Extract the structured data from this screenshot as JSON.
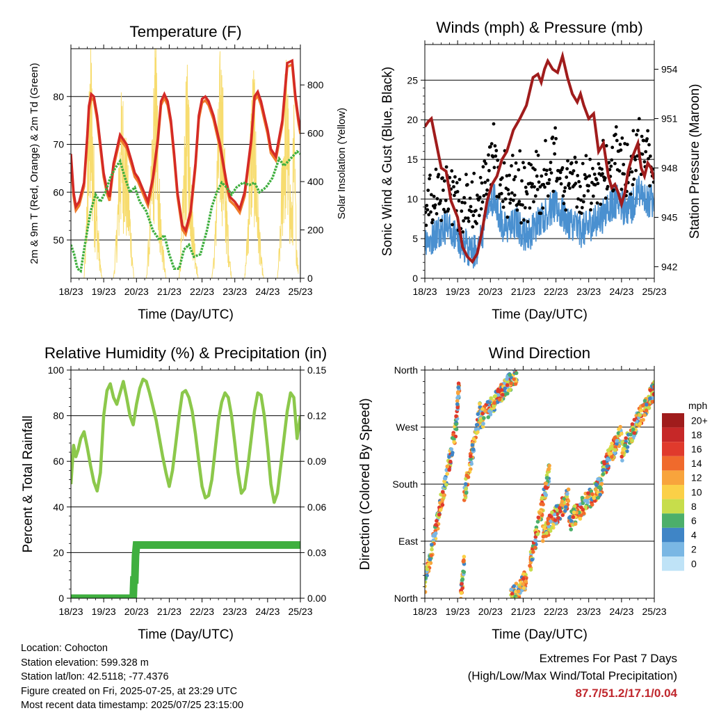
{
  "charts": {
    "temperature": {
      "title": "Temperature (F)",
      "ylabel_left": "2m & 9m T (Red, Orange) & 2m Td (Green)",
      "ylabel_right": "Solar Insolation (Yellow)",
      "xlabel": "Time (Day/UTC)"
    },
    "winds": {
      "title": "Winds (mph) & Pressure (mb)",
      "ylabel_left": "Sonic Wind & Gust (Blue, Black)",
      "ylabel_right": "Station Pressure (Maroon)",
      "xlabel": "Time (Day/UTC)"
    },
    "humidity": {
      "title": "Relative Humidity (%) & Precipitation (in)",
      "ylabel_left": "Percent & Total Rainfall",
      "xlabel": "Time (Day/UTC)"
    },
    "direction": {
      "title": "Wind Direction",
      "ylabel_left": "Direction (Colored By Speed)",
      "xlabel": "Time (Day/UTC)",
      "legend_title": "mph"
    }
  },
  "info": {
    "location": "Location: Cohocton",
    "elevation": "Station elevation: 599.328 m",
    "latlon": "Station lat/lon: 42.5118; -77.4376",
    "created": "Figure created on Fri, 2025-07-25, at 23:29 UTC",
    "recent": "Most recent data timestamp: 2025/07/25 23:15:00"
  },
  "extremes": {
    "heading": "Extremes For Past 7 Days",
    "subheading": "(High/Low/Max Wind/Total Precipitation)",
    "values": "87.7/51.2/17.1/0.04"
  },
  "colors": {
    "temp_2m": "#d42a26",
    "temp_9m": "#f07a2a",
    "dewpoint": "#3faf3f",
    "solar": "#f7dc6f",
    "wind": "#4a90d0",
    "gust": "#000000",
    "pressure": "#a01c1c",
    "rh": "#8cc84b",
    "precip": "#3faf3f"
  },
  "chart_data": [
    {
      "id": "temperature",
      "type": "line",
      "x_ticks": [
        "18/23",
        "19/23",
        "20/23",
        "21/23",
        "22/23",
        "23/23",
        "24/23",
        "25/23"
      ],
      "xlim": [
        0,
        7
      ],
      "ylim": [
        42,
        90
      ],
      "y_ticks": [
        50,
        60,
        70,
        80
      ],
      "y2lim": [
        0,
        950
      ],
      "y2_ticks": [
        0,
        200,
        400,
        600,
        800
      ],
      "series": [
        {
          "key": "temp_2m",
          "x": [
            0,
            0.08,
            0.15,
            0.25,
            0.4,
            0.5,
            0.55,
            0.62,
            0.7,
            0.8,
            0.9,
            1.0,
            1.1,
            1.18,
            1.3,
            1.5,
            1.7,
            1.85,
            1.95,
            2.05,
            2.2,
            2.35,
            2.5,
            2.65,
            2.75,
            2.85,
            2.95,
            3.05,
            3.15,
            3.25,
            3.4,
            3.5,
            3.65,
            3.8,
            3.9,
            4.0,
            4.1,
            4.2,
            4.35,
            4.55,
            4.65,
            4.75,
            4.85,
            5.0,
            5.15,
            5.3,
            5.5,
            5.6,
            5.7,
            5.8,
            5.9,
            6.0,
            6.1,
            6.25,
            6.45,
            6.6,
            6.75,
            6.85,
            6.95,
            7.0
          ],
          "y": [
            68,
            60,
            57,
            58,
            62,
            72,
            78,
            80.5,
            80,
            76,
            70,
            64,
            60.5,
            59,
            66,
            72,
            70,
            66.5,
            64,
            63,
            60.5,
            58,
            63,
            71,
            79,
            80.5,
            79,
            75,
            68,
            60,
            53,
            52,
            56,
            66,
            76,
            79.5,
            80,
            79,
            76,
            70,
            66,
            62,
            59,
            58,
            56.5,
            60,
            71,
            80,
            81,
            79,
            76,
            73,
            69,
            67.5,
            75,
            87,
            87.5,
            80,
            75,
            73
          ]
        },
        {
          "key": "dewpoint",
          "x": [
            0,
            0.1,
            0.2,
            0.3,
            0.45,
            0.6,
            0.75,
            0.9,
            1.05,
            1.2,
            1.35,
            1.5,
            1.65,
            1.8,
            1.95,
            2.1,
            2.3,
            2.5,
            2.7,
            2.85,
            3.0,
            3.15,
            3.3,
            3.45,
            3.6,
            3.75,
            3.95,
            4.15,
            4.3,
            4.45,
            4.6,
            4.75,
            4.9,
            5.05,
            5.25,
            5.45,
            5.6,
            5.75,
            5.95,
            6.15,
            6.35,
            6.5,
            6.7,
            6.9,
            7.0
          ],
          "y": [
            49,
            47,
            44,
            43.5,
            50,
            56,
            59.5,
            58,
            60,
            63,
            65,
            66.5,
            63,
            60,
            61,
            58,
            56,
            52,
            50,
            51,
            47,
            44,
            44,
            48,
            49,
            46.5,
            47,
            52,
            57,
            60,
            62,
            61,
            59.5,
            61,
            62,
            61.5,
            62,
            60,
            61,
            63,
            67,
            65.5,
            67,
            68.5,
            68
          ]
        },
        {
          "key": "solar",
          "x": [
            0.4,
            0.47,
            0.52,
            0.58,
            0.62,
            0.66,
            0.72,
            0.78,
            0.84,
            0.9,
            0.95,
            1.3,
            1.38,
            1.45,
            1.5,
            1.56,
            1.62,
            1.68,
            1.75,
            1.82,
            1.92,
            2.3,
            2.4,
            2.48,
            2.55,
            2.6,
            2.65,
            2.7,
            2.75,
            2.82,
            2.9,
            3.3,
            3.38,
            3.45,
            3.52,
            3.58,
            3.63,
            3.68,
            3.74,
            3.8,
            3.88,
            4.3,
            4.4,
            4.47,
            4.55,
            4.6,
            4.65,
            4.7,
            4.76,
            4.82,
            4.9,
            5.3,
            5.38,
            5.45,
            5.52,
            5.58,
            5.63,
            5.68,
            5.74,
            5.8,
            5.88,
            6.3,
            6.38,
            6.45,
            6.52,
            6.58,
            6.63,
            6.68,
            6.74,
            6.8,
            6.88,
            6.95
          ],
          "y": [
            0,
            250,
            600,
            850,
            920,
            700,
            450,
            350,
            200,
            60,
            0,
            0,
            180,
            420,
            650,
            760,
            700,
            560,
            420,
            260,
            0,
            0,
            250,
            600,
            880,
            940,
            700,
            420,
            260,
            120,
            0,
            0,
            220,
            520,
            800,
            830,
            610,
            400,
            250,
            120,
            0,
            0,
            200,
            600,
            880,
            900,
            700,
            500,
            300,
            150,
            0,
            0,
            200,
            550,
            800,
            850,
            650,
            400,
            250,
            100,
            0,
            0,
            200,
            550,
            800,
            880,
            700,
            450,
            300,
            700,
            200,
            0
          ]
        }
      ]
    },
    {
      "id": "winds",
      "type": "line",
      "x_ticks": [
        "18/23",
        "19/23",
        "20/23",
        "21/23",
        "22/23",
        "23/23",
        "24/23",
        "25/23"
      ],
      "xlim": [
        0,
        7
      ],
      "ylim": [
        0,
        29.5
      ],
      "y_ticks": [
        0,
        5,
        10,
        15,
        20,
        25
      ],
      "y2lim": [
        941.3,
        955.5
      ],
      "y2_ticks": [
        942,
        945,
        948,
        951,
        954
      ],
      "series": [
        {
          "key": "pressure",
          "x": [
            0,
            0.1,
            0.2,
            0.35,
            0.5,
            0.65,
            0.8,
            1.0,
            1.15,
            1.3,
            1.45,
            1.6,
            1.75,
            1.9,
            2.05,
            2.2,
            2.35,
            2.5,
            2.7,
            2.9,
            3.1,
            3.3,
            3.45,
            3.55,
            3.65,
            3.75,
            3.9,
            4.05,
            4.2,
            4.35,
            4.5,
            4.65,
            4.75,
            4.85,
            5.0,
            5.15,
            5.3,
            5.45,
            5.6,
            5.7,
            5.8,
            5.9,
            6.0,
            6.1,
            6.2,
            6.3,
            6.4,
            6.5,
            6.6,
            6.7,
            6.8,
            6.9,
            7.0
          ],
          "y": [
            950.5,
            950.8,
            951.0,
            949.5,
            948.0,
            947.8,
            946.0,
            945.0,
            943.2,
            942.6,
            942.3,
            942.8,
            944.2,
            946.0,
            947.0,
            947.5,
            948.5,
            949.0,
            950.3,
            951.0,
            951.8,
            953.5,
            953.7,
            953.2,
            954.0,
            954.5,
            954.0,
            953.8,
            954.8,
            953.5,
            952.5,
            952.0,
            952.5,
            951.8,
            951.0,
            951.3,
            949.0,
            949.5,
            947.5,
            946.8,
            947.0,
            946.5,
            945.8,
            946.5,
            947.8,
            948.5,
            949.0,
            949.5,
            948.0,
            947.5,
            948.3,
            948.0,
            947.3
          ]
        }
      ],
      "wind_base": [
        5.2,
        4.8,
        5.5,
        6.0,
        6.5,
        6.2,
        5.5,
        5.0,
        4.5,
        4.0,
        3.0,
        3.5,
        4.5,
        7.0,
        9.0,
        10.5,
        8.5,
        6.5,
        6.0,
        6.5,
        7.0,
        6.0,
        5.5,
        5.8,
        6.5,
        7.5,
        8.0,
        8.5,
        9.0,
        8.8,
        8.0,
        7.2,
        7.0,
        6.5,
        6.0,
        6.2,
        6.8,
        7.0,
        7.5,
        8.0,
        9.0,
        9.5,
        9.8,
        9.0,
        8.5,
        9.0,
        10.5,
        11.0,
        10.5,
        9.5,
        10.0
      ]
    },
    {
      "id": "humidity",
      "type": "line",
      "x_ticks": [
        "18/23",
        "19/23",
        "20/23",
        "21/23",
        "22/23",
        "23/23",
        "24/23",
        "25/23"
      ],
      "xlim": [
        0,
        7
      ],
      "ylim": [
        0,
        100
      ],
      "y_ticks": [
        0,
        20,
        40,
        60,
        80,
        100
      ],
      "y2lim": [
        0,
        0.15
      ],
      "y2_ticks": [
        "0.00",
        "0.03",
        "0.06",
        "0.09",
        "0.12",
        "0.15"
      ],
      "series": [
        {
          "key": "rh",
          "x": [
            0,
            0.08,
            0.15,
            0.22,
            0.3,
            0.4,
            0.5,
            0.6,
            0.7,
            0.8,
            0.9,
            1.0,
            1.1,
            1.2,
            1.3,
            1.4,
            1.5,
            1.6,
            1.7,
            1.8,
            1.9,
            2.0,
            2.1,
            2.2,
            2.3,
            2.4,
            2.5,
            2.6,
            2.7,
            2.8,
            2.9,
            3.0,
            3.1,
            3.2,
            3.3,
            3.4,
            3.5,
            3.6,
            3.7,
            3.8,
            3.9,
            4.0,
            4.1,
            4.2,
            4.3,
            4.4,
            4.5,
            4.6,
            4.7,
            4.8,
            4.9,
            5.0,
            5.1,
            5.2,
            5.3,
            5.4,
            5.5,
            5.6,
            5.7,
            5.8,
            5.9,
            6.0,
            6.1,
            6.2,
            6.3,
            6.4,
            6.5,
            6.6,
            6.7,
            6.8,
            6.9,
            7.0
          ],
          "y": [
            50,
            67,
            62,
            65,
            70,
            73,
            66,
            58,
            51,
            47,
            55,
            80,
            91,
            94,
            88,
            85,
            90,
            95,
            88,
            80,
            76,
            85,
            92,
            96,
            95,
            90,
            84,
            78,
            70,
            62,
            55,
            49,
            56,
            68,
            80,
            90,
            91,
            88,
            82,
            72,
            60,
            49,
            44,
            45,
            52,
            65,
            78,
            86,
            90,
            88,
            80,
            68,
            55,
            46,
            48,
            58,
            70,
            82,
            90,
            89,
            80,
            66,
            50,
            42,
            46,
            58,
            70,
            82,
            90,
            88,
            70,
            80
          ]
        },
        {
          "key": "precip",
          "x": [
            0,
            0.5,
            1.0,
            1.5,
            1.8,
            1.9,
            1.92,
            1.95,
            1.97,
            2.0,
            2.1,
            2.5,
            3.0,
            4.0,
            5.0,
            6.0,
            7.0
          ],
          "y": [
            0,
            0,
            0,
            0,
            0,
            0,
            0.012,
            0.012,
            0.028,
            0.035,
            0.035,
            0.035,
            0.035,
            0.035,
            0.035,
            0.035,
            0.035
          ]
        }
      ]
    },
    {
      "id": "direction",
      "type": "scatter",
      "x_ticks": [
        "18/23",
        "19/23",
        "20/23",
        "21/23",
        "22/23",
        "23/23",
        "24/23",
        "25/23"
      ],
      "xlim": [
        0,
        7
      ],
      "ylim": [
        0,
        360
      ],
      "y_ticks": [
        "North",
        "East",
        "South",
        "West",
        "North"
      ],
      "legend": [
        "20+",
        "18",
        "16",
        "14",
        "12",
        "10",
        "8",
        "6",
        "4",
        "2",
        "0"
      ],
      "legend_colors": [
        "#a01c1c",
        "#c62828",
        "#e03a2c",
        "#f06a2c",
        "#f8a43c",
        "#fbd047",
        "#c7dd4b",
        "#4caf6a",
        "#3f85c6",
        "#7ab7e4",
        "#bfe3f7"
      ],
      "segments": [
        {
          "x0": 0.0,
          "x1": 0.95,
          "y0": 20,
          "y1": 270
        },
        {
          "x0": 0.95,
          "x1": 1.05,
          "y0": 270,
          "y1": 340
        },
        {
          "x0": 1.2,
          "x1": 1.7,
          "y0": 160,
          "y1": 300
        },
        {
          "x0": 1.7,
          "x1": 2.8,
          "y0": 280,
          "y1": 355
        },
        {
          "x0": 1.1,
          "x1": 1.2,
          "y0": 0,
          "y1": 60
        },
        {
          "x0": 2.6,
          "x1": 3.1,
          "y0": 0,
          "y1": 30
        },
        {
          "x0": 3.2,
          "x1": 3.8,
          "y0": 50,
          "y1": 200
        },
        {
          "x0": 3.6,
          "x1": 4.4,
          "y0": 100,
          "y1": 160
        },
        {
          "x0": 4.4,
          "x1": 5.4,
          "y0": 120,
          "y1": 180
        },
        {
          "x0": 5.4,
          "x1": 6.0,
          "y0": 200,
          "y1": 260
        },
        {
          "x0": 6.0,
          "x1": 7.0,
          "y0": 230,
          "y1": 330
        }
      ]
    }
  ]
}
